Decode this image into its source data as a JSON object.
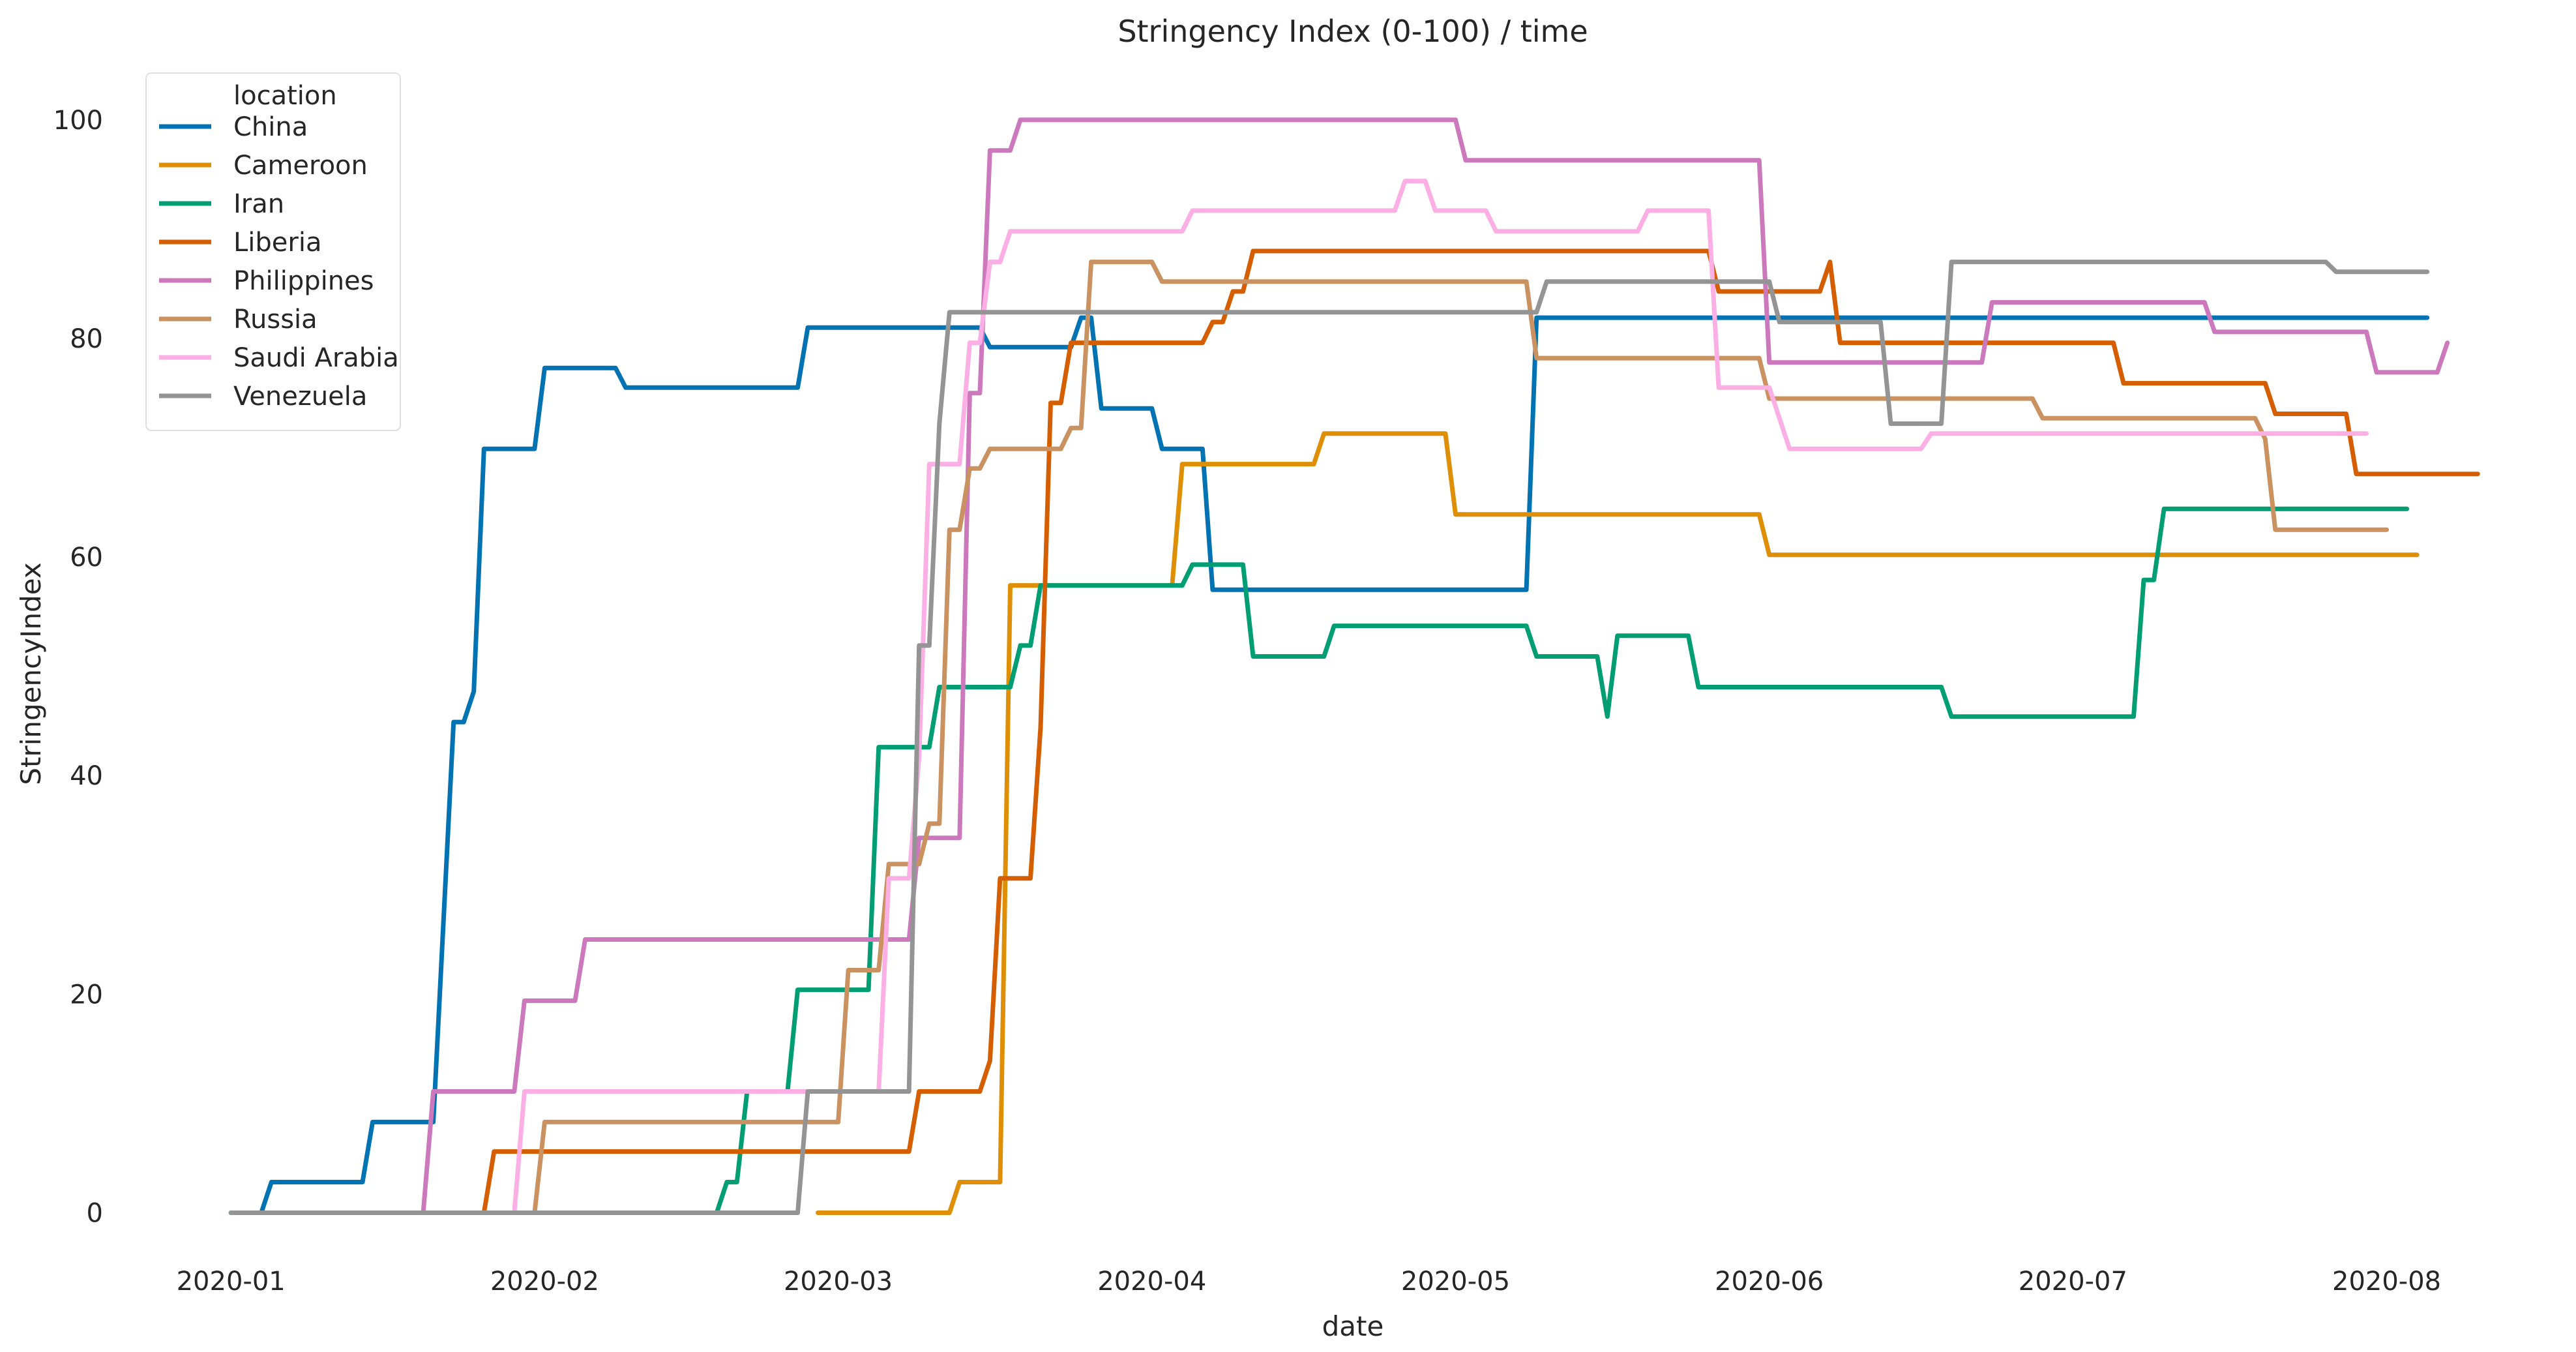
{
  "chart_data": {
    "type": "line",
    "title": "Stringency Index (0-100) / time",
    "xlabel": "date",
    "ylabel": "StringencyIndex",
    "x_ticks": [
      "2020-01",
      "2020-02",
      "2020-03",
      "2020-04",
      "2020-05",
      "2020-06",
      "2020-07",
      "2020-08"
    ],
    "y_ticks": [
      0,
      20,
      40,
      60,
      80,
      100
    ],
    "xlim": [
      "2019-12-24",
      "2020-08-19"
    ],
    "ylim": [
      -6,
      105
    ],
    "grid": false,
    "legend": {
      "title": "location",
      "placement": "top-left"
    },
    "series": [
      {
        "name": "China",
        "color": "#0173b2",
        "points": [
          [
            "2020-01-01",
            0
          ],
          [
            "2020-01-04",
            0
          ],
          [
            "2020-01-05",
            2.8
          ],
          [
            "2020-01-14",
            2.8
          ],
          [
            "2020-01-15",
            8.3
          ],
          [
            "2020-01-21",
            8.3
          ],
          [
            "2020-01-23",
            44.9
          ],
          [
            "2020-01-24",
            44.9
          ],
          [
            "2020-01-25",
            47.7
          ],
          [
            "2020-01-26",
            69.9
          ],
          [
            "2020-01-31",
            69.9
          ],
          [
            "2020-02-01",
            77.3
          ],
          [
            "2020-02-08",
            77.3
          ],
          [
            "2020-02-09",
            75.5
          ],
          [
            "2020-02-26",
            75.5
          ],
          [
            "2020-02-27",
            81.0
          ],
          [
            "2020-03-15",
            81.0
          ],
          [
            "2020-03-16",
            79.2
          ],
          [
            "2020-03-24",
            79.2
          ],
          [
            "2020-03-25",
            81.9
          ],
          [
            "2020-03-26",
            81.9
          ],
          [
            "2020-03-27",
            73.6
          ],
          [
            "2020-04-01",
            73.6
          ],
          [
            "2020-04-02",
            69.9
          ],
          [
            "2020-04-06",
            69.9
          ],
          [
            "2020-04-07",
            57.0
          ],
          [
            "2020-05-08",
            57.0
          ],
          [
            "2020-05-09",
            81.9
          ],
          [
            "2020-08-05",
            81.9
          ]
        ]
      },
      {
        "name": "Cameroon",
        "color": "#de8f05",
        "points": [
          [
            "2020-02-28",
            0
          ],
          [
            "2020-03-12",
            0
          ],
          [
            "2020-03-13",
            2.8
          ],
          [
            "2020-03-17",
            2.8
          ],
          [
            "2020-03-18",
            57.4
          ],
          [
            "2020-04-03",
            57.4
          ],
          [
            "2020-04-04",
            68.5
          ],
          [
            "2020-04-17",
            68.5
          ],
          [
            "2020-04-18",
            71.3
          ],
          [
            "2020-04-30",
            71.3
          ],
          [
            "2020-05-01",
            63.9
          ],
          [
            "2020-05-31",
            63.9
          ],
          [
            "2020-06-01",
            60.2
          ],
          [
            "2020-08-04",
            60.2
          ]
        ]
      },
      {
        "name": "Iran",
        "color": "#029e73",
        "points": [
          [
            "2020-01-01",
            0
          ],
          [
            "2020-02-18",
            0
          ],
          [
            "2020-02-19",
            2.8
          ],
          [
            "2020-02-20",
            2.8
          ],
          [
            "2020-02-21",
            11.1
          ],
          [
            "2020-02-25",
            11.1
          ],
          [
            "2020-02-26",
            20.4
          ],
          [
            "2020-03-04",
            20.4
          ],
          [
            "2020-03-05",
            42.6
          ],
          [
            "2020-03-10",
            42.6
          ],
          [
            "2020-03-11",
            48.1
          ],
          [
            "2020-03-18",
            48.1
          ],
          [
            "2020-03-19",
            51.9
          ],
          [
            "2020-03-20",
            51.9
          ],
          [
            "2020-03-21",
            57.4
          ],
          [
            "2020-04-04",
            57.4
          ],
          [
            "2020-04-05",
            59.3
          ],
          [
            "2020-04-10",
            59.3
          ],
          [
            "2020-04-11",
            50.9
          ],
          [
            "2020-04-18",
            50.9
          ],
          [
            "2020-04-19",
            53.7
          ],
          [
            "2020-05-08",
            53.7
          ],
          [
            "2020-05-09",
            50.9
          ],
          [
            "2020-05-15",
            50.9
          ],
          [
            "2020-05-16",
            45.4
          ],
          [
            "2020-05-17",
            52.8
          ],
          [
            "2020-05-24",
            52.8
          ],
          [
            "2020-05-25",
            48.1
          ],
          [
            "2020-06-18",
            48.1
          ],
          [
            "2020-06-19",
            45.4
          ],
          [
            "2020-07-07",
            45.4
          ],
          [
            "2020-07-08",
            57.9
          ],
          [
            "2020-07-09",
            57.9
          ],
          [
            "2020-07-10",
            64.4
          ],
          [
            "2020-08-03",
            64.4
          ]
        ]
      },
      {
        "name": "Liberia",
        "color": "#d55e00",
        "points": [
          [
            "2020-01-26",
            0
          ],
          [
            "2020-01-27",
            5.6
          ],
          [
            "2020-03-08",
            5.6
          ],
          [
            "2020-03-09",
            11.1
          ],
          [
            "2020-03-15",
            11.1
          ],
          [
            "2020-03-16",
            13.9
          ],
          [
            "2020-03-17",
            30.6
          ],
          [
            "2020-03-20",
            30.6
          ],
          [
            "2020-03-21",
            44.4
          ],
          [
            "2020-03-22",
            74.1
          ],
          [
            "2020-03-23",
            74.1
          ],
          [
            "2020-03-24",
            79.6
          ],
          [
            "2020-04-06",
            79.6
          ],
          [
            "2020-04-07",
            81.5
          ],
          [
            "2020-04-08",
            81.5
          ],
          [
            "2020-04-09",
            84.3
          ],
          [
            "2020-04-10",
            84.3
          ],
          [
            "2020-04-11",
            88.0
          ],
          [
            "2020-05-26",
            88.0
          ],
          [
            "2020-05-27",
            84.3
          ],
          [
            "2020-06-06",
            84.3
          ],
          [
            "2020-06-07",
            87.0
          ],
          [
            "2020-06-08",
            79.6
          ],
          [
            "2020-07-05",
            79.6
          ],
          [
            "2020-07-06",
            75.9
          ],
          [
            "2020-07-20",
            75.9
          ],
          [
            "2020-07-21",
            73.1
          ],
          [
            "2020-07-28",
            73.1
          ],
          [
            "2020-07-29",
            67.6
          ],
          [
            "2020-08-10",
            67.6
          ]
        ]
      },
      {
        "name": "Philippines",
        "color": "#cc78bc",
        "points": [
          [
            "2020-01-20",
            0
          ],
          [
            "2020-01-21",
            11.1
          ],
          [
            "2020-01-29",
            11.1
          ],
          [
            "2020-01-30",
            19.4
          ],
          [
            "2020-02-04",
            19.4
          ],
          [
            "2020-02-05",
            25.0
          ],
          [
            "2020-03-08",
            25.0
          ],
          [
            "2020-03-09",
            34.3
          ],
          [
            "2020-03-13",
            34.3
          ],
          [
            "2020-03-14",
            75.0
          ],
          [
            "2020-03-15",
            75.0
          ],
          [
            "2020-03-16",
            97.2
          ],
          [
            "2020-03-18",
            97.2
          ],
          [
            "2020-03-19",
            100
          ],
          [
            "2020-05-01",
            100
          ],
          [
            "2020-05-02",
            96.3
          ],
          [
            "2020-05-31",
            96.3
          ],
          [
            "2020-06-01",
            77.8
          ],
          [
            "2020-06-22",
            77.8
          ],
          [
            "2020-06-23",
            83.3
          ],
          [
            "2020-07-14",
            83.3
          ],
          [
            "2020-07-15",
            80.6
          ],
          [
            "2020-07-30",
            80.6
          ],
          [
            "2020-07-31",
            76.9
          ],
          [
            "2020-08-06",
            76.9
          ],
          [
            "2020-08-07",
            79.6
          ]
        ]
      },
      {
        "name": "Russia",
        "color": "#ca9161",
        "points": [
          [
            "2020-01-31",
            0
          ],
          [
            "2020-02-01",
            8.3
          ],
          [
            "2020-03-01",
            8.3
          ],
          [
            "2020-03-02",
            22.2
          ],
          [
            "2020-03-05",
            22.2
          ],
          [
            "2020-03-06",
            31.9
          ],
          [
            "2020-03-09",
            31.9
          ],
          [
            "2020-03-10",
            35.6
          ],
          [
            "2020-03-11",
            35.6
          ],
          [
            "2020-03-12",
            62.5
          ],
          [
            "2020-03-13",
            62.5
          ],
          [
            "2020-03-14",
            68.1
          ],
          [
            "2020-03-15",
            68.1
          ],
          [
            "2020-03-16",
            69.9
          ],
          [
            "2020-03-23",
            69.9
          ],
          [
            "2020-03-24",
            71.8
          ],
          [
            "2020-03-25",
            71.8
          ],
          [
            "2020-03-26",
            87.0
          ],
          [
            "2020-04-01",
            87.0
          ],
          [
            "2020-04-02",
            85.2
          ],
          [
            "2020-05-08",
            85.2
          ],
          [
            "2020-05-09",
            78.2
          ],
          [
            "2020-05-31",
            78.2
          ],
          [
            "2020-06-01",
            74.5
          ],
          [
            "2020-06-27",
            74.5
          ],
          [
            "2020-06-28",
            72.7
          ],
          [
            "2020-07-19",
            72.7
          ],
          [
            "2020-07-20",
            70.8
          ],
          [
            "2020-07-21",
            62.5
          ],
          [
            "2020-08-01",
            62.5
          ]
        ]
      },
      {
        "name": "Saudi Arabia",
        "color": "#fbafe4",
        "points": [
          [
            "2020-01-29",
            0
          ],
          [
            "2020-01-30",
            11.1
          ],
          [
            "2020-03-05",
            11.1
          ],
          [
            "2020-03-06",
            30.6
          ],
          [
            "2020-03-08",
            30.6
          ],
          [
            "2020-03-09",
            41.7
          ],
          [
            "2020-03-10",
            68.5
          ],
          [
            "2020-03-13",
            68.5
          ],
          [
            "2020-03-14",
            79.6
          ],
          [
            "2020-03-15",
            79.6
          ],
          [
            "2020-03-16",
            87.0
          ],
          [
            "2020-03-17",
            87.0
          ],
          [
            "2020-03-18",
            89.8
          ],
          [
            "2020-04-04",
            89.8
          ],
          [
            "2020-04-05",
            91.7
          ],
          [
            "2020-04-25",
            91.7
          ],
          [
            "2020-04-26",
            94.4
          ],
          [
            "2020-04-28",
            94.4
          ],
          [
            "2020-04-29",
            91.7
          ],
          [
            "2020-05-04",
            91.7
          ],
          [
            "2020-05-05",
            89.8
          ],
          [
            "2020-05-19",
            89.8
          ],
          [
            "2020-05-20",
            91.7
          ],
          [
            "2020-05-26",
            91.7
          ],
          [
            "2020-05-27",
            75.5
          ],
          [
            "2020-06-01",
            75.5
          ],
          [
            "2020-06-02",
            72.7
          ],
          [
            "2020-06-03",
            69.9
          ],
          [
            "2020-06-16",
            69.9
          ],
          [
            "2020-06-17",
            71.3
          ],
          [
            "2020-07-30",
            71.3
          ]
        ]
      },
      {
        "name": "Venezuela",
        "color": "#949494",
        "points": [
          [
            "2020-01-01",
            0
          ],
          [
            "2020-02-26",
            0
          ],
          [
            "2020-02-27",
            11.1
          ],
          [
            "2020-03-08",
            11.1
          ],
          [
            "2020-03-09",
            51.9
          ],
          [
            "2020-03-10",
            51.9
          ],
          [
            "2020-03-11",
            72.2
          ],
          [
            "2020-03-12",
            82.4
          ],
          [
            "2020-05-09",
            82.4
          ],
          [
            "2020-05-10",
            85.2
          ],
          [
            "2020-06-01",
            85.2
          ],
          [
            "2020-06-02",
            81.5
          ],
          [
            "2020-06-12",
            81.5
          ],
          [
            "2020-06-13",
            72.2
          ],
          [
            "2020-06-18",
            72.2
          ],
          [
            "2020-06-19",
            87.0
          ],
          [
            "2020-07-26",
            87.0
          ],
          [
            "2020-07-27",
            86.1
          ],
          [
            "2020-08-05",
            86.1
          ]
        ]
      }
    ]
  }
}
